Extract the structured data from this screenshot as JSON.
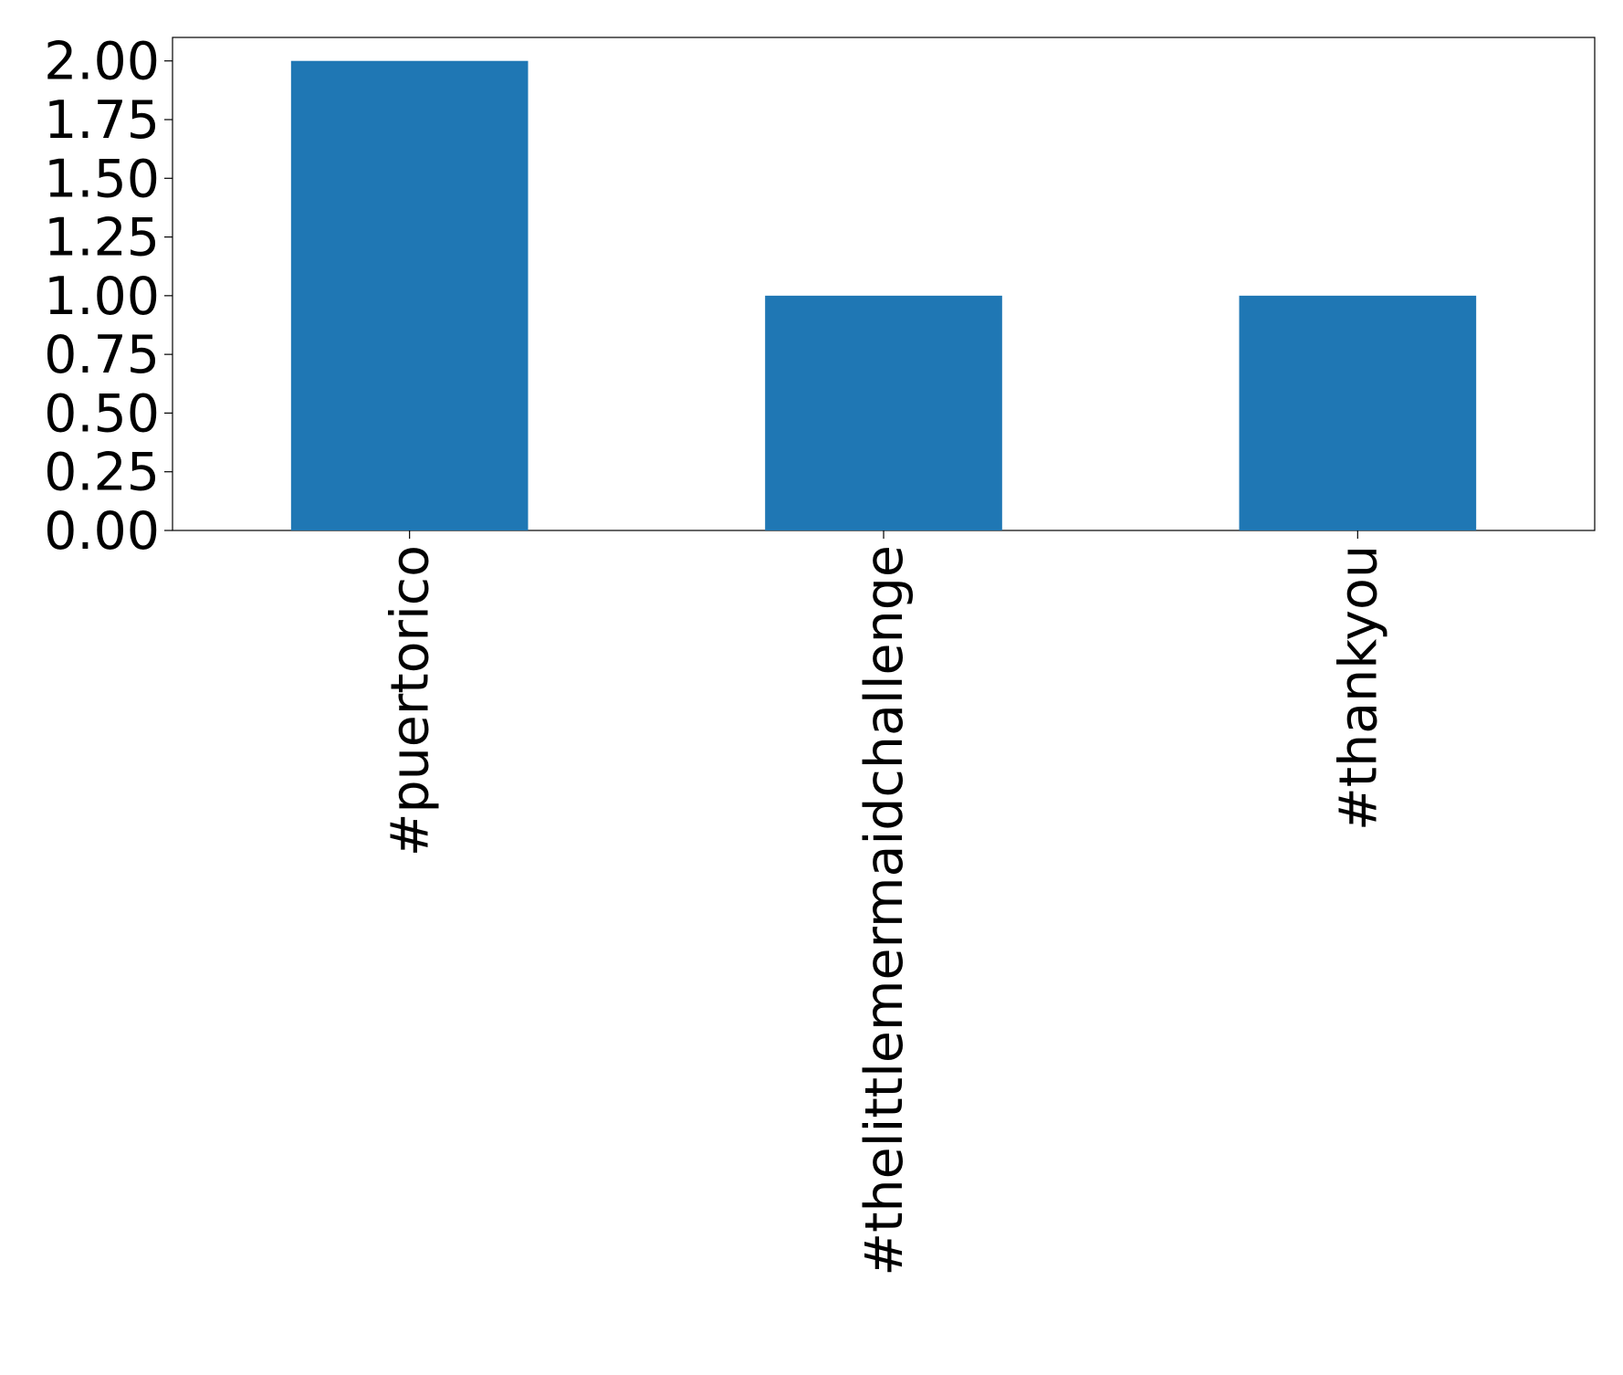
{
  "chart_data": {
    "type": "bar",
    "categories": [
      "#puertorico",
      "#thelittlemermaidchallenge",
      "#thankyou"
    ],
    "values": [
      2,
      1,
      1
    ],
    "color": "#1f77b4",
    "ylim": [
      0,
      2.1
    ],
    "yticks": [
      {
        "value": 0,
        "label": "0.00"
      },
      {
        "value": 0.25,
        "label": "0.25"
      },
      {
        "value": 0.5,
        "label": "0.50"
      },
      {
        "value": 0.75,
        "label": "0.75"
      },
      {
        "value": 1,
        "label": "1.00"
      },
      {
        "value": 1.25,
        "label": "1.25"
      },
      {
        "value": 1.5,
        "label": "1.50"
      },
      {
        "value": 1.75,
        "label": "1.75"
      },
      {
        "value": 2,
        "label": "2.00"
      }
    ],
    "grid": false
  }
}
